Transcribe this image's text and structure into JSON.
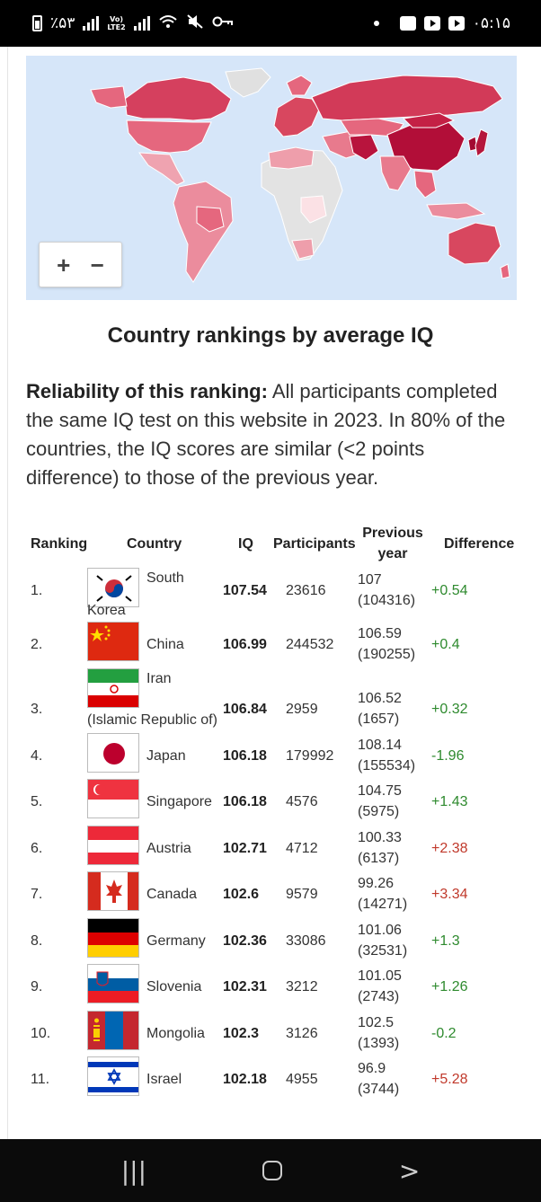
{
  "status_bar": {
    "battery": "٪۵۳",
    "lte_label": "Vo)\nLTE2",
    "time": "۰۵:۱۵"
  },
  "map": {
    "zoom_in": "+",
    "zoom_out": "−"
  },
  "title": "Country rankings by average IQ",
  "reliability": {
    "label": "Reliability of this ranking:",
    "text": " All participants completed the same IQ test on this website in 2023. In 80% of the countries, the IQ scores are similar (<2 points difference) to those of the previous year."
  },
  "table": {
    "headers": {
      "ranking": "Ranking",
      "country": "Country",
      "iq": "IQ",
      "participants": "Participants",
      "previous_year": "Previous year",
      "difference": "Difference"
    },
    "rows": [
      {
        "rank": "1.",
        "country_a": "South",
        "country_b": "Korea",
        "iq": "107.54",
        "participants": "23616",
        "prev": "107",
        "prev_n": "(104316)",
        "diff": "+0.54",
        "flag": "south-korea"
      },
      {
        "rank": "2.",
        "country_a": "China",
        "country_b": "",
        "iq": "106.99",
        "participants": "244532",
        "prev": "106.59",
        "prev_n": "(190255)",
        "diff": "+0.4",
        "flag": "china"
      },
      {
        "rank": "3.",
        "country_a": "Iran",
        "country_b": "(Islamic Republic of)",
        "iq": "106.84",
        "participants": "2959",
        "prev": "106.52",
        "prev_n": "(1657)",
        "diff": "+0.32",
        "flag": "iran"
      },
      {
        "rank": "4.",
        "country_a": "Japan",
        "country_b": "",
        "iq": "106.18",
        "participants": "179992",
        "prev": "108.14",
        "prev_n": "(155534)",
        "diff": "-1.96",
        "flag": "japan"
      },
      {
        "rank": "5.",
        "country_a": "Singapore",
        "country_b": "",
        "iq": "106.18",
        "participants": "4576",
        "prev": "104.75",
        "prev_n": "(5975)",
        "diff": "+1.43",
        "flag": "singapore"
      },
      {
        "rank": "6.",
        "country_a": "Austria",
        "country_b": "",
        "iq": "102.71",
        "participants": "4712",
        "prev": "100.33",
        "prev_n": "(6137)",
        "diff": "+2.38",
        "flag": "austria"
      },
      {
        "rank": "7.",
        "country_a": "Canada",
        "country_b": "",
        "iq": "102.6",
        "participants": "9579",
        "prev": "99.26",
        "prev_n": "(14271)",
        "diff": "+3.34",
        "flag": "canada"
      },
      {
        "rank": "8.",
        "country_a": "Germany",
        "country_b": "",
        "iq": "102.36",
        "participants": "33086",
        "prev": "101.06",
        "prev_n": "(32531)",
        "diff": "+1.3",
        "flag": "germany"
      },
      {
        "rank": "9.",
        "country_a": "Slovenia",
        "country_b": "",
        "iq": "102.31",
        "participants": "3212",
        "prev": "101.05",
        "prev_n": "(2743)",
        "diff": "+1.26",
        "flag": "slovenia"
      },
      {
        "rank": "10.",
        "country_a": "Mongolia",
        "country_b": "",
        "iq": "102.3",
        "participants": "3126",
        "prev": "102.5",
        "prev_n": "(1393)",
        "diff": "-0.2",
        "flag": "mongolia"
      },
      {
        "rank": "11.",
        "country_a": "Israel",
        "country_b": "",
        "iq": "102.18",
        "participants": "4955",
        "prev": "96.9",
        "prev_n": "(3744)",
        "diff": "+5.28",
        "flag": "israel"
      }
    ]
  },
  "colors": {
    "positive": "#2e8a2e",
    "large_positive": "#c0392b",
    "map_ocean": "#d6e6f9"
  }
}
